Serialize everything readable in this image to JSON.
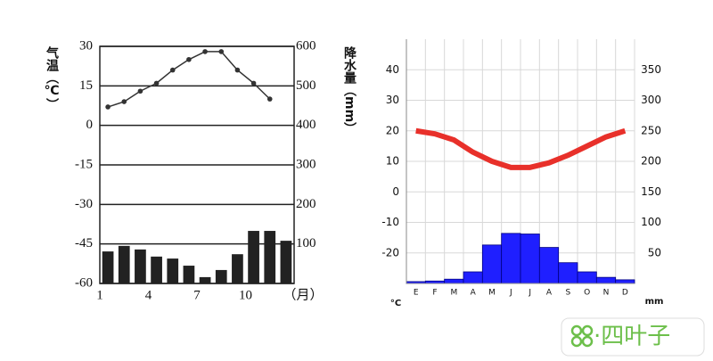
{
  "chart_data": [
    {
      "type": "combo",
      "ylabel": "气温（℃）",
      "y2label": "降水量（mm）",
      "xlabel": "（月）",
      "categories": [
        "1",
        null,
        null,
        "4",
        null,
        null,
        "7",
        null,
        null,
        "10",
        null,
        null
      ],
      "ylim": [
        -60,
        30
      ],
      "yticks": [
        30,
        15,
        0,
        -15,
        -30,
        -45,
        -60
      ],
      "y2lim": [
        0,
        600
      ],
      "y2ticks": [
        600,
        500,
        400,
        300,
        200,
        100
      ],
      "grid": "y",
      "grid_color": "#222",
      "frame": true,
      "series": [
        {
          "type": "bar",
          "axis": "y2",
          "color": "#222",
          "values": [
            81,
            95,
            86,
            68,
            63,
            45,
            16,
            34,
            74,
            133,
            133,
            108
          ]
        },
        {
          "type": "line",
          "axis": "y",
          "color": "#333",
          "markers": true,
          "line_width": 1.5,
          "values": [
            7,
            9,
            13,
            16,
            21,
            25,
            28,
            28,
            21,
            16,
            10,
            null
          ]
        }
      ]
    },
    {
      "type": "combo",
      "ylabel": "°C",
      "y2label": "mm",
      "categories": [
        "E",
        "F",
        "M",
        "A",
        "M",
        "J",
        "J",
        "A",
        "S",
        "O",
        "N",
        "D"
      ],
      "ylim": [
        -30,
        50
      ],
      "yticks": [
        40,
        30,
        20,
        10,
        0,
        -10,
        -20
      ],
      "y2lim": [
        0,
        400
      ],
      "y2ticks": [
        350,
        300,
        250,
        200,
        150,
        100,
        50
      ],
      "grid": "both",
      "grid_color": "#d8d8d8",
      "frame": false,
      "series": [
        {
          "type": "bar",
          "axis": "y2",
          "color": "#1f1fff",
          "values": [
            3,
            4,
            7,
            19,
            63,
            82,
            81,
            59,
            34,
            19,
            10,
            6
          ]
        },
        {
          "type": "line",
          "axis": "y",
          "color": "#e8302a",
          "markers": false,
          "line_width": 6,
          "values": [
            20,
            19,
            17,
            13,
            10,
            8,
            8,
            9.5,
            12,
            15,
            18,
            20
          ]
        }
      ]
    }
  ],
  "watermark": "·四叶子"
}
